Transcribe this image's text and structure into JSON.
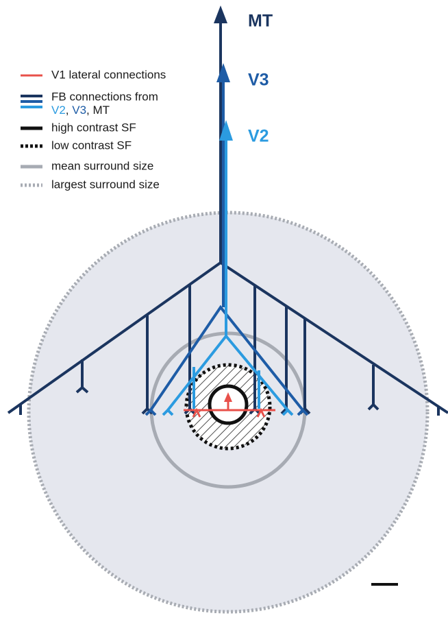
{
  "labels": {
    "mt": "MT",
    "v3": "V3",
    "v2": "V2"
  },
  "legend": {
    "v1_lateral": "V1 lateral connections",
    "fb_title": "FB connections from",
    "fb_sources": [
      "V2",
      ", ",
      "V3",
      ", MT"
    ],
    "high_contrast": "high contrast SF",
    "low_contrast": "low contrast SF",
    "mean_surround": "mean surround size",
    "largest_surround": "largest surround size"
  }
}
